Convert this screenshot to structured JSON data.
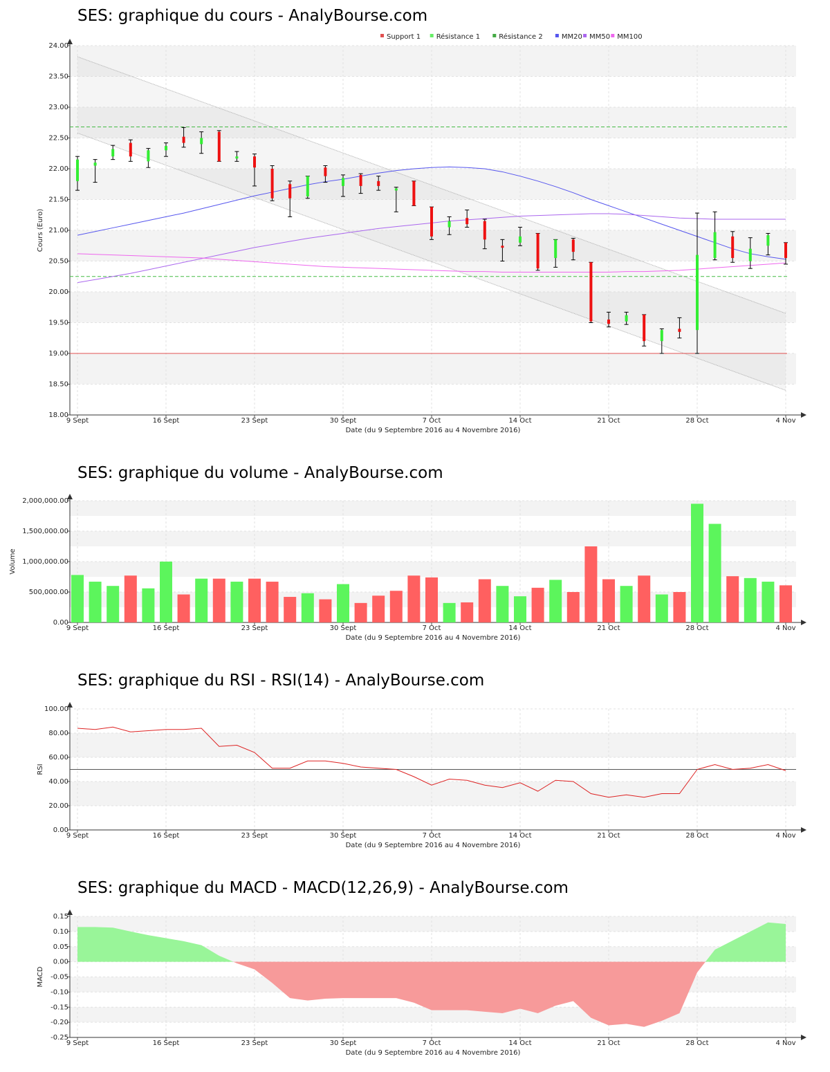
{
  "chart_data": [
    {
      "type": "candlestick",
      "title": "SES: graphique du cours - AnalyBourse.com",
      "xlabel": "Date (du 9 Septembre 2016 au 4 Novembre 2016)",
      "ylabel": "Cours (Euro)",
      "ylim": [
        18.0,
        24.0
      ],
      "y_ticks": [
        "18.00",
        "18.50",
        "19.00",
        "19.50",
        "20.00",
        "20.50",
        "21.00",
        "21.50",
        "22.00",
        "22.50",
        "23.00",
        "23.50",
        "24.00"
      ],
      "x_tick_labels": [
        {
          "day": 0,
          "label": "9 Sept"
        },
        {
          "day": 5,
          "label": "16 Sept"
        },
        {
          "day": 10,
          "label": "23 Sept"
        },
        {
          "day": 15,
          "label": "30 Sept"
        },
        {
          "day": 20,
          "label": "7 Oct"
        },
        {
          "day": 25,
          "label": "14 Oct"
        },
        {
          "day": 30,
          "label": "21 Oct"
        },
        {
          "day": 35,
          "label": "28 Oct"
        },
        {
          "day": 40,
          "label": "4 Nov"
        }
      ],
      "legend": [
        {
          "name": "Support 1",
          "color": "#e05050"
        },
        {
          "name": "Résistance 1",
          "color": "#66ee66"
        },
        {
          "name": "Résistance 2",
          "color": "#44aa44"
        },
        {
          "name": "MM20",
          "color": "#5555ee"
        },
        {
          "name": "MM50",
          "color": "#aa66ee"
        },
        {
          "name": "MM100",
          "color": "#ee66ee"
        }
      ],
      "legend_position": "top-right",
      "support_1": 19.0,
      "resistance_1": 20.25,
      "resistance_2": 22.68,
      "candles": [
        {
          "o": 21.8,
          "h": 22.2,
          "l": 21.65,
          "c": 22.15
        },
        {
          "o": 22.05,
          "h": 22.15,
          "l": 21.78,
          "c": 22.1
        },
        {
          "o": 22.2,
          "h": 22.38,
          "l": 22.15,
          "c": 22.32
        },
        {
          "o": 22.42,
          "h": 22.47,
          "l": 22.12,
          "c": 22.2
        },
        {
          "o": 22.12,
          "h": 22.33,
          "l": 22.02,
          "c": 22.3
        },
        {
          "o": 22.3,
          "h": 22.42,
          "l": 22.2,
          "c": 22.37
        },
        {
          "o": 22.52,
          "h": 22.67,
          "l": 22.35,
          "c": 22.42
        },
        {
          "o": 22.4,
          "h": 22.6,
          "l": 22.25,
          "c": 22.5
        },
        {
          "o": 22.6,
          "h": 22.62,
          "l": 22.12,
          "c": 22.12
        },
        {
          "o": 22.2,
          "h": 22.28,
          "l": 22.12,
          "c": 22.2
        },
        {
          "o": 22.2,
          "h": 22.24,
          "l": 21.72,
          "c": 22.02
        },
        {
          "o": 22.0,
          "h": 22.05,
          "l": 21.48,
          "c": 21.52
        },
        {
          "o": 21.75,
          "h": 21.8,
          "l": 21.22,
          "c": 21.52
        },
        {
          "o": 21.55,
          "h": 21.88,
          "l": 21.52,
          "c": 21.88
        },
        {
          "o": 22.02,
          "h": 22.05,
          "l": 21.78,
          "c": 21.88
        },
        {
          "o": 21.72,
          "h": 21.9,
          "l": 21.55,
          "c": 21.85
        },
        {
          "o": 21.9,
          "h": 21.92,
          "l": 21.6,
          "c": 21.72
        },
        {
          "o": 21.8,
          "h": 21.88,
          "l": 21.65,
          "c": 21.72
        },
        {
          "o": 21.68,
          "h": 21.7,
          "l": 21.3,
          "c": 21.68
        },
        {
          "o": 21.8,
          "h": 21.8,
          "l": 21.4,
          "c": 21.4
        },
        {
          "o": 21.38,
          "h": 21.38,
          "l": 20.85,
          "c": 20.9
        },
        {
          "o": 21.05,
          "h": 21.22,
          "l": 20.93,
          "c": 21.15
        },
        {
          "o": 21.2,
          "h": 21.33,
          "l": 21.05,
          "c": 21.1
        },
        {
          "o": 21.15,
          "h": 21.18,
          "l": 20.7,
          "c": 20.85
        },
        {
          "o": 20.75,
          "h": 20.85,
          "l": 20.5,
          "c": 20.72
        },
        {
          "o": 20.8,
          "h": 21.05,
          "l": 20.75,
          "c": 20.9
        },
        {
          "o": 20.95,
          "h": 20.95,
          "l": 20.35,
          "c": 20.38
        },
        {
          "o": 20.55,
          "h": 20.85,
          "l": 20.4,
          "c": 20.85
        },
        {
          "o": 20.85,
          "h": 20.87,
          "l": 20.52,
          "c": 20.65
        },
        {
          "o": 20.48,
          "h": 20.48,
          "l": 19.5,
          "c": 19.52
        },
        {
          "o": 19.55,
          "h": 19.67,
          "l": 19.43,
          "c": 19.48
        },
        {
          "o": 19.52,
          "h": 19.67,
          "l": 19.47,
          "c": 19.62
        },
        {
          "o": 19.63,
          "h": 19.63,
          "l": 19.12,
          "c": 19.2
        },
        {
          "o": 19.2,
          "h": 19.4,
          "l": 19.0,
          "c": 19.38
        },
        {
          "o": 19.4,
          "h": 19.58,
          "l": 19.25,
          "c": 19.35
        },
        {
          "o": 19.38,
          "h": 21.28,
          "l": 19.0,
          "c": 20.6
        },
        {
          "o": 20.55,
          "h": 21.3,
          "l": 20.52,
          "c": 20.97
        },
        {
          "o": 20.9,
          "h": 20.98,
          "l": 20.48,
          "c": 20.55
        },
        {
          "o": 20.5,
          "h": 20.88,
          "l": 20.38,
          "c": 20.7
        },
        {
          "o": 20.75,
          "h": 20.95,
          "l": 20.6,
          "c": 20.92
        },
        {
          "o": 20.8,
          "h": 20.8,
          "l": 20.45,
          "c": 20.55
        }
      ],
      "series": [
        {
          "name": "MM20",
          "values": [
            20.92,
            20.98,
            21.04,
            21.1,
            21.16,
            21.22,
            21.28,
            21.35,
            21.42,
            21.49,
            21.56,
            21.62,
            21.68,
            21.74,
            21.79,
            21.83,
            21.88,
            21.93,
            21.97,
            22.0,
            22.02,
            22.03,
            22.02,
            22.0,
            21.95,
            21.88,
            21.8,
            21.71,
            21.61,
            21.5,
            21.4,
            21.3,
            21.2,
            21.1,
            21.0,
            20.9,
            20.8,
            20.7,
            20.62,
            20.57,
            20.53
          ]
        },
        {
          "name": "MM50",
          "values": [
            20.15,
            20.2,
            20.25,
            20.3,
            20.36,
            20.42,
            20.48,
            20.54,
            20.6,
            20.66,
            20.72,
            20.77,
            20.82,
            20.87,
            20.91,
            20.95,
            20.99,
            21.03,
            21.06,
            21.09,
            21.12,
            21.15,
            21.17,
            21.19,
            21.21,
            21.23,
            21.24,
            21.25,
            21.26,
            21.27,
            21.27,
            21.26,
            21.24,
            21.22,
            21.2,
            21.19,
            21.18,
            21.18,
            21.18,
            21.18,
            21.18
          ]
        },
        {
          "name": "MM100",
          "values": [
            20.62,
            20.61,
            20.6,
            20.59,
            20.58,
            20.57,
            20.56,
            20.55,
            20.53,
            20.51,
            20.49,
            20.47,
            20.45,
            20.43,
            20.41,
            20.4,
            20.39,
            20.38,
            20.37,
            20.36,
            20.35,
            20.34,
            20.33,
            20.33,
            20.32,
            20.32,
            20.32,
            20.32,
            20.32,
            20.32,
            20.32,
            20.33,
            20.33,
            20.34,
            20.35,
            20.37,
            20.39,
            20.41,
            20.43,
            20.45,
            20.47
          ]
        }
      ],
      "channel_upper": [
        23.82,
        19.65
      ],
      "channel_lower": [
        22.58,
        18.4
      ]
    },
    {
      "type": "bar",
      "title": "SES: graphique du volume - AnalyBourse.com",
      "xlabel": "Date (du 9 Septembre 2016 au 4 Novembre 2016)",
      "ylabel": "Volume",
      "ylim": [
        0,
        2000000
      ],
      "y_ticks": [
        "0.00",
        "500,000.00",
        "1,000,000.00",
        "1,500,000.00",
        "2,000,000.00"
      ],
      "x_tick_labels": [
        {
          "day": 0,
          "label": "9 Sept"
        },
        {
          "day": 5,
          "label": "16 Sept"
        },
        {
          "day": 10,
          "label": "23 Sept"
        },
        {
          "day": 15,
          "label": "30 Sept"
        },
        {
          "day": 20,
          "label": "7 Oct"
        },
        {
          "day": 25,
          "label": "14 Oct"
        },
        {
          "day": 30,
          "label": "21 Oct"
        },
        {
          "day": 35,
          "label": "28 Oct"
        },
        {
          "day": 40,
          "label": "4 Nov"
        }
      ],
      "values": [
        780000,
        670000,
        600000,
        770000,
        560000,
        1000000,
        460000,
        720000,
        720000,
        670000,
        720000,
        670000,
        420000,
        480000,
        380000,
        630000,
        320000,
        440000,
        520000,
        770000,
        740000,
        320000,
        330000,
        710000,
        600000,
        430000,
        570000,
        700000,
        500000,
        1250000,
        710000,
        600000,
        770000,
        460000,
        500000,
        1950000,
        1620000,
        760000,
        730000,
        670000,
        610000
      ],
      "colors": [
        "g",
        "g",
        "g",
        "r",
        "g",
        "g",
        "r",
        "g",
        "r",
        "g",
        "r",
        "r",
        "r",
        "g",
        "r",
        "g",
        "r",
        "r",
        "r",
        "r",
        "r",
        "g",
        "r",
        "r",
        "g",
        "g",
        "r",
        "g",
        "r",
        "r",
        "r",
        "g",
        "r",
        "g",
        "r",
        "g",
        "g",
        "r",
        "g",
        "g",
        "r"
      ]
    },
    {
      "type": "line",
      "title": "SES: graphique du RSI - RSI(14) - AnalyBourse.com",
      "xlabel": "Date (du 9 Septembre 2016 au 4 Novembre 2016)",
      "ylabel": "RSI",
      "ylim": [
        0,
        100
      ],
      "y_ticks": [
        "0.00",
        "20.00",
        "40.00",
        "60.00",
        "80.00",
        "100.00"
      ],
      "x_tick_labels": [
        {
          "day": 0,
          "label": "9 Sept"
        },
        {
          "day": 5,
          "label": "16 Sept"
        },
        {
          "day": 10,
          "label": "23 Sept"
        },
        {
          "day": 15,
          "label": "30 Sept"
        },
        {
          "day": 20,
          "label": "7 Oct"
        },
        {
          "day": 25,
          "label": "14 Oct"
        },
        {
          "day": 30,
          "label": "21 Oct"
        },
        {
          "day": 35,
          "label": "28 Oct"
        },
        {
          "day": 40,
          "label": "4 Nov"
        }
      ],
      "reference_line": 50,
      "values": [
        84,
        83,
        85,
        81,
        82,
        83,
        83,
        84,
        69,
        70,
        64,
        51,
        51,
        57,
        57,
        55,
        52,
        51,
        50,
        44,
        37,
        42,
        41,
        37,
        35,
        39,
        32,
        41,
        40,
        30,
        27,
        29,
        27,
        30,
        30,
        50,
        54,
        50,
        51,
        54,
        49
      ]
    },
    {
      "type": "area",
      "title": "SES: graphique du MACD - MACD(12,26,9) - AnalyBourse.com",
      "xlabel": "Date (du 9 Septembre 2016 au 4 Novembre 2016)",
      "ylabel": "MACD",
      "ylim": [
        -0.25,
        0.15
      ],
      "y_ticks": [
        "-0.25",
        "-0.20",
        "-0.15",
        "-0.10",
        "-0.05",
        "0.00",
        "0.05",
        "0.10",
        "0.15"
      ],
      "x_tick_labels": [
        {
          "day": 0,
          "label": "9 Sept"
        },
        {
          "day": 5,
          "label": "16 Sept"
        },
        {
          "day": 10,
          "label": "23 Sept"
        },
        {
          "day": 15,
          "label": "30 Sept"
        },
        {
          "day": 20,
          "label": "7 Oct"
        },
        {
          "day": 25,
          "label": "14 Oct"
        },
        {
          "day": 30,
          "label": "21 Oct"
        },
        {
          "day": 35,
          "label": "28 Oct"
        },
        {
          "day": 40,
          "label": "4 Nov"
        }
      ],
      "values": [
        0.115,
        0.115,
        0.113,
        0.1,
        0.088,
        0.078,
        0.068,
        0.055,
        0.02,
        -0.005,
        -0.025,
        -0.07,
        -0.12,
        -0.128,
        -0.122,
        -0.12,
        -0.12,
        -0.12,
        -0.12,
        -0.135,
        -0.16,
        -0.16,
        -0.16,
        -0.165,
        -0.17,
        -0.155,
        -0.17,
        -0.145,
        -0.13,
        -0.185,
        -0.21,
        -0.205,
        -0.215,
        -0.195,
        -0.17,
        -0.035,
        0.04,
        0.07,
        0.1,
        0.13,
        0.125
      ],
      "colors": {
        "positive": "#99f599",
        "negative": "#f79a9a"
      }
    }
  ]
}
